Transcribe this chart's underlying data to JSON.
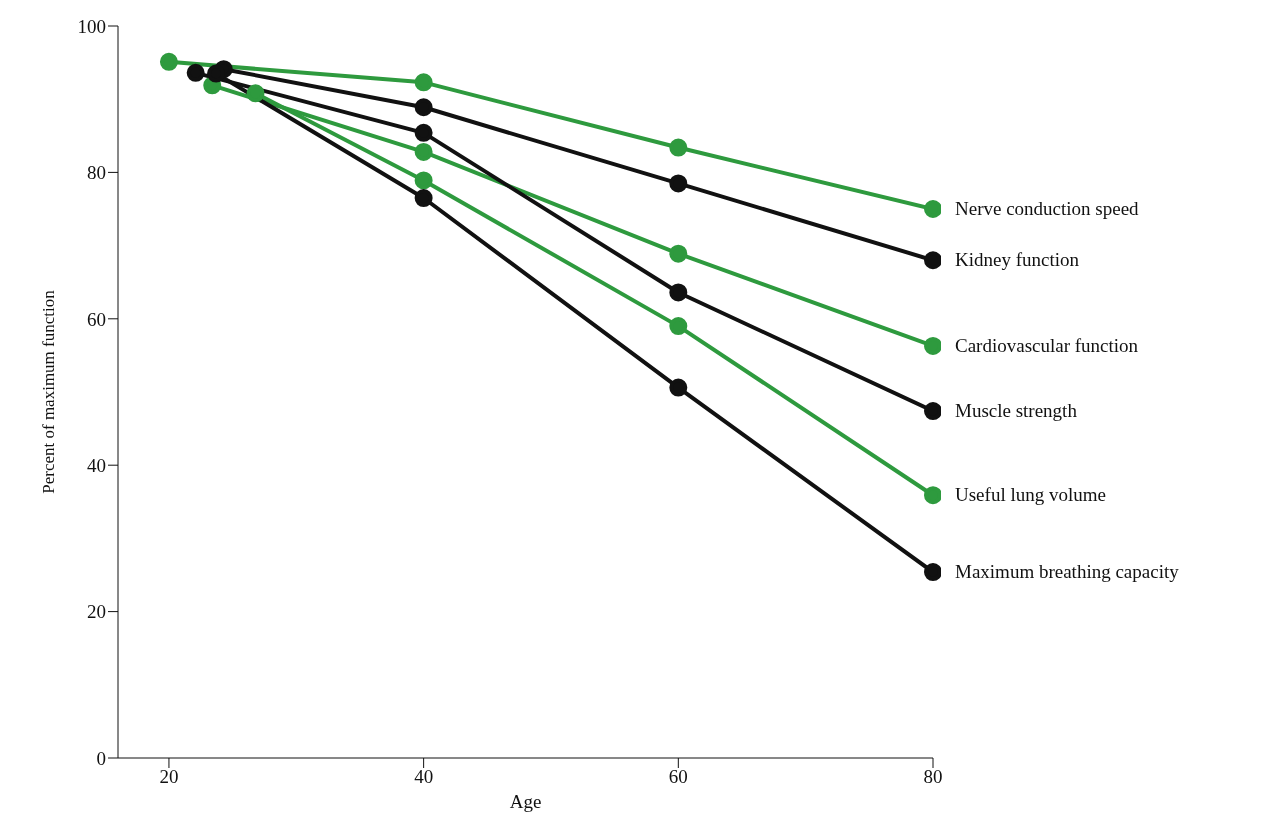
{
  "chart_data": {
    "type": "line",
    "xlabel": "Age",
    "ylabel": "Percent of maximum function",
    "xlim": [
      16,
      80
    ],
    "xticks": [
      20,
      40,
      60,
      80
    ],
    "ylim": [
      0,
      100
    ],
    "yticks": [
      0,
      20,
      40,
      60,
      80,
      100
    ],
    "grid": false,
    "legend": false,
    "marker": "circle",
    "line_style": "solid",
    "series": [
      {
        "name": "Nerve conduction speed",
        "color": "#2e9a3e",
        "x": [
          20,
          40,
          60,
          80
        ],
        "values": [
          95.1,
          92.3,
          83.4,
          75.0
        ]
      },
      {
        "name": "Kidney function",
        "color": "#111111",
        "x": [
          24.3,
          40,
          60,
          80
        ],
        "values": [
          94.1,
          88.9,
          78.5,
          68.0
        ]
      },
      {
        "name": "Cardiovascular function",
        "color": "#2e9a3e",
        "x": [
          23.4,
          40,
          60,
          80
        ],
        "values": [
          91.9,
          82.8,
          68.9,
          56.3
        ]
      },
      {
        "name": "Muscle strength",
        "color": "#111111",
        "x": [
          22.1,
          40,
          60,
          80
        ],
        "values": [
          93.6,
          85.4,
          63.6,
          47.4
        ]
      },
      {
        "name": "Useful lung volume",
        "color": "#2e9a3e",
        "x": [
          26.8,
          40,
          60,
          80
        ],
        "values": [
          90.8,
          78.9,
          59.0,
          35.9
        ]
      },
      {
        "name": "Maximum breathing capacity",
        "color": "#111111",
        "x": [
          23.7,
          40,
          60,
          80
        ],
        "values": [
          93.5,
          76.5,
          50.6,
          25.4
        ]
      }
    ]
  }
}
